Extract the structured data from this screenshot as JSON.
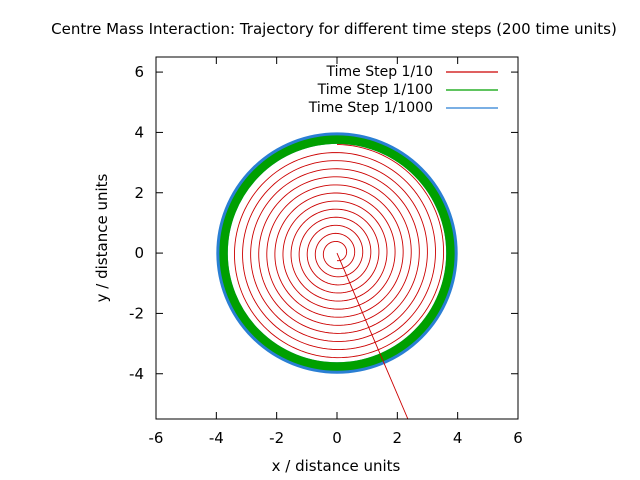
{
  "chart_data": {
    "type": "line",
    "title": "Centre Mass Interaction: Trajectory for different time steps (200 time units)",
    "xlabel": "x / distance units",
    "ylabel": "y / distance units",
    "xlim": [
      -6,
      6
    ],
    "ylim": [
      -5.5,
      6.5
    ],
    "xticks": [
      "-6",
      "-4",
      "-2",
      "0",
      "2",
      "4",
      "6"
    ],
    "yticks": [
      "-4",
      "-2",
      "0",
      "2",
      "4",
      "6"
    ],
    "grid": false,
    "legend_position": "top-right",
    "series": [
      {
        "name": "Time Step 1/10",
        "color": "#cc0000",
        "shape": "spiral",
        "start_radius": 0.25,
        "end_radius": 3.6,
        "turns": 12.5,
        "escape_to": [
          2.35,
          -5.5
        ]
      },
      {
        "name": "Time Step 1/100",
        "color": "#00a000",
        "shape": "ring",
        "inner_radius": 3.62,
        "outer_radius": 3.9
      },
      {
        "name": "Time Step 1/1000",
        "color": "#2a7fd4",
        "shape": "ring",
        "inner_radius": 3.62,
        "outer_radius": 4.0
      }
    ]
  }
}
